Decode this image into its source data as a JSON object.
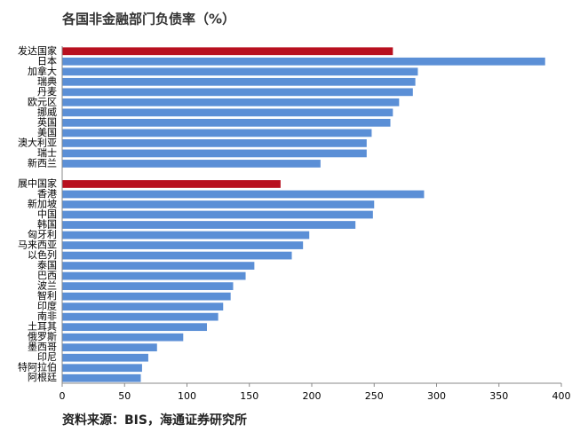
{
  "chart_data": {
    "type": "bar",
    "orientation": "horizontal",
    "title": "各国非金融部门负债率（%）",
    "source": "资料来源：BIS，海通证券研究所",
    "categories": [
      "发达国家",
      "日本",
      "加拿大",
      "瑞典",
      "丹麦",
      "欧元区",
      "挪威",
      "英国",
      "美国",
      "澳大利亚",
      "瑞士",
      "新西兰",
      null,
      "展中国家",
      "香港",
      "新加坡",
      "中国",
      "韩国",
      "匈牙利",
      "马来西亚",
      "以色列",
      "泰国",
      "巴西",
      "波兰",
      "智利",
      "印度",
      "南非",
      "土耳其",
      "俄罗斯",
      "墨西哥",
      "印尼",
      "特阿拉伯",
      "阿根廷"
    ],
    "values": [
      265,
      387,
      285,
      283,
      281,
      270,
      265,
      263,
      248,
      244,
      244,
      207,
      null,
      175,
      290,
      250,
      249,
      235,
      198,
      193,
      184,
      154,
      147,
      137,
      135,
      129,
      125,
      116,
      97,
      76,
      69,
      64,
      63
    ],
    "colors": [
      "#b8101f",
      "#5b8fd6",
      "#5b8fd6",
      "#5b8fd6",
      "#5b8fd6",
      "#5b8fd6",
      "#5b8fd6",
      "#5b8fd6",
      "#5b8fd6",
      "#5b8fd6",
      "#5b8fd6",
      "#5b8fd6",
      null,
      "#b8101f",
      "#5b8fd6",
      "#5b8fd6",
      "#5b8fd6",
      "#5b8fd6",
      "#5b8fd6",
      "#5b8fd6",
      "#5b8fd6",
      "#5b8fd6",
      "#5b8fd6",
      "#5b8fd6",
      "#5b8fd6",
      "#5b8fd6",
      "#5b8fd6",
      "#5b8fd6",
      "#5b8fd6",
      "#5b8fd6",
      "#5b8fd6",
      "#5b8fd6",
      "#5b8fd6"
    ],
    "xlim": [
      0,
      400
    ],
    "xticks": [
      0,
      50,
      100,
      150,
      200,
      250,
      300,
      350,
      400
    ],
    "grid": false
  }
}
